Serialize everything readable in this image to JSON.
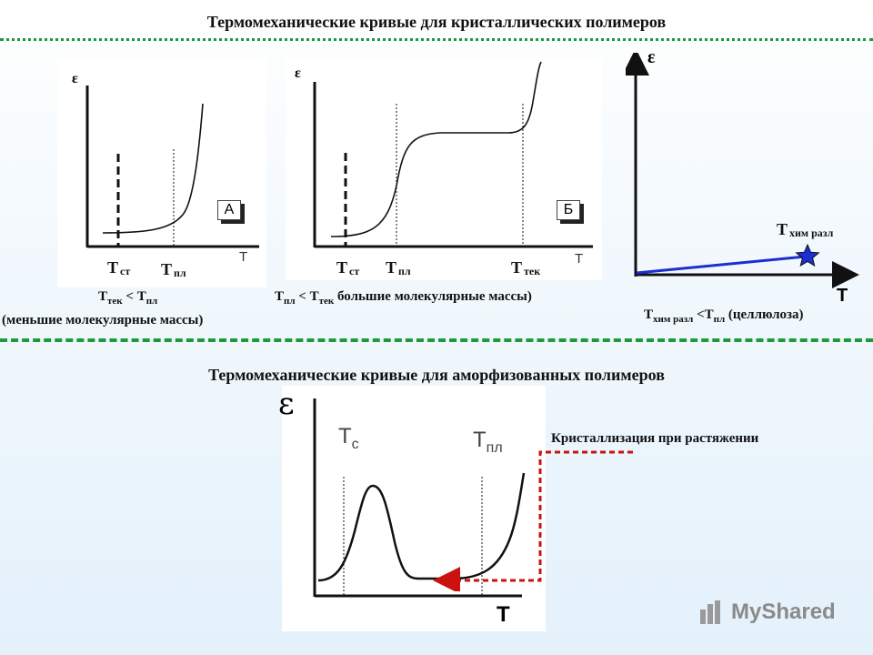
{
  "titles": {
    "crystalline": "Термомеханические кривые для кристаллических полимеров",
    "amorphized": "Термомеханические кривые для аморфизованных полимеров"
  },
  "panel_a": {
    "y_axis": "ε",
    "x_axis": "T",
    "box": "А",
    "t_st_main": "T",
    "t_st_sub": "ст",
    "t_pl_main": "T",
    "t_pl_sub": "пл",
    "caption_line1_a": "T",
    "caption_line1_sub1": "тек",
    "caption_line1_mid": " < T",
    "caption_line1_sub2": "пл",
    "caption_line2": "(меньшие молекулярные массы)"
  },
  "panel_b": {
    "y_axis": "ε",
    "x_axis": "T",
    "box": "Б",
    "t_st_main": "T",
    "t_st_sub": "ст",
    "t_pl_main": "T",
    "t_pl_sub": "пл",
    "t_tek_main": "T",
    "t_tek_sub": "тек",
    "caption_a": "T",
    "caption_sub1": "пл",
    "caption_mid": " < T",
    "caption_sub2": "тек",
    "caption_rest": " большие молекулярные массы)"
  },
  "panel_c": {
    "y_axis": "ε",
    "x_axis": "T",
    "t_label_main": "T",
    "t_label_sub": "хим разл",
    "caption_a": "T",
    "caption_sub1": "хим разл",
    "caption_mid": " <T",
    "caption_sub2": "пл",
    "caption_rest": " (целлюлоза)",
    "colors": {
      "line": "#1c2fd0",
      "star": "#1c2fd0"
    }
  },
  "panel_d": {
    "y_axis": "ε",
    "x_axis": "T",
    "tc_main": "T",
    "tc_sub": "c",
    "tpl_main": "T",
    "tpl_sub": "пл",
    "annotation": "Кристаллизация при растяжении",
    "colors": {
      "arrow": "#cc1111"
    }
  },
  "watermark": "MyShared",
  "colors": {
    "divider": "#1a9a3a"
  }
}
